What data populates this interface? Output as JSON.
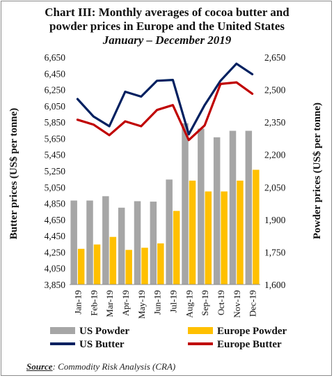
{
  "title": {
    "line1": "Chart III: Monthly averages of cocoa butter and",
    "line2": "powder prices in Europe and the United States",
    "subtitle": "January – December 2019"
  },
  "source": {
    "label": "Source",
    "text": ": Commodity Risk Analysis (CRA)"
  },
  "chart_data": {
    "type": "bar+line",
    "categories": [
      "Jan-19",
      "Feb-19",
      "Mar-19",
      "Apr-19",
      "May-19",
      "Jun-19",
      "Jul-19",
      "Aug-19",
      "Sep-19",
      "Oct-19",
      "Nov-19",
      "Dec-19"
    ],
    "left_axis": {
      "label": "Butter prices (US$ per tonne)",
      "ylim": [
        3850,
        6650
      ],
      "ticks": [
        3850,
        4050,
        4250,
        4450,
        4650,
        4850,
        5050,
        5250,
        5450,
        5650,
        5850,
        6050,
        6250,
        6450,
        6650
      ],
      "tick_labels": [
        "3,850",
        "4,050",
        "4,250",
        "4,450",
        "4,650",
        "4,850",
        "5,050",
        "5,250",
        "5,450",
        "5,650",
        "5,850",
        "6,050",
        "6,250",
        "6,450",
        "6,650"
      ]
    },
    "right_axis": {
      "label": "Powder prices (US$ per tonne)",
      "ylim": [
        1600,
        2650
      ],
      "ticks": [
        1600,
        1750,
        1900,
        2050,
        2200,
        2350,
        2500,
        2650
      ],
      "tick_labels": [
        "1,600",
        "1,750",
        "1,900",
        "2,050",
        "2,200",
        "2,350",
        "2,500",
        "2,650"
      ]
    },
    "series": [
      {
        "name": "US Powder",
        "kind": "bar",
        "axis": "right",
        "color": "#a6a6a6",
        "values": [
          1988,
          1988,
          2008,
          1955,
          1985,
          1983,
          2085,
          2345,
          2320,
          2280,
          2310,
          2310
        ]
      },
      {
        "name": "Europe Powder",
        "kind": "bar",
        "axis": "right",
        "color": "#ffc000",
        "values": [
          1765,
          1785,
          1820,
          1760,
          1770,
          1790,
          1940,
          2080,
          2030,
          2030,
          2080,
          2130
        ]
      },
      {
        "name": "US Butter",
        "kind": "line",
        "axis": "left",
        "color": "#002060",
        "values": [
          6135,
          5920,
          5800,
          6225,
          6165,
          6360,
          6370,
          5700,
          6060,
          6360,
          6570,
          6440
        ]
      },
      {
        "name": "Europe Butter",
        "kind": "line",
        "axis": "left",
        "color": "#c00000",
        "values": [
          5880,
          5820,
          5690,
          5860,
          5800,
          6000,
          6060,
          5630,
          5810,
          6320,
          6340,
          6200
        ]
      }
    ],
    "legend_placement": "bottom",
    "grid": false
  }
}
